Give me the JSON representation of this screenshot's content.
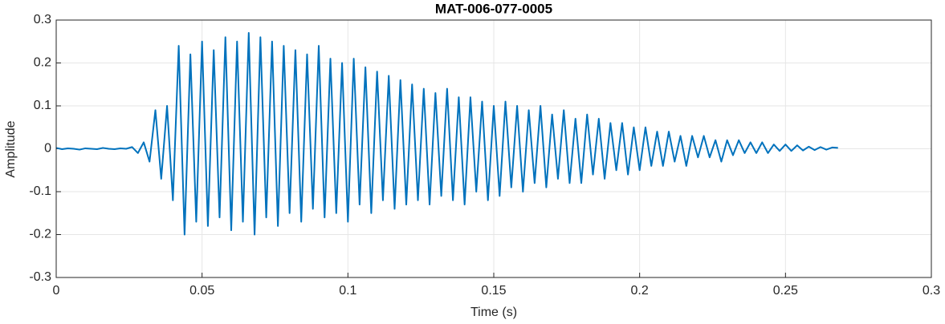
{
  "chart_data": {
    "type": "line",
    "title": "MAT-006-077-0005",
    "xlabel": "Time (s)",
    "ylabel": "Amplitude",
    "x": [
      0,
      0.002,
      0.004,
      0.006,
      0.008,
      0.01,
      0.012,
      0.014,
      0.016,
      0.018,
      0.02,
      0.022,
      0.024,
      0.026,
      0.028,
      0.03,
      0.032,
      0.034,
      0.036,
      0.038,
      0.04,
      0.042,
      0.044,
      0.046,
      0.048,
      0.05,
      0.052,
      0.054,
      0.056,
      0.058,
      0.06,
      0.062,
      0.064,
      0.066,
      0.068,
      0.07,
      0.072,
      0.074,
      0.076,
      0.078,
      0.08,
      0.082,
      0.084,
      0.086,
      0.088,
      0.09,
      0.092,
      0.094,
      0.096,
      0.098,
      0.1,
      0.102,
      0.104,
      0.106,
      0.108,
      0.11,
      0.112,
      0.114,
      0.116,
      0.118,
      0.12,
      0.122,
      0.124,
      0.126,
      0.128,
      0.13,
      0.132,
      0.134,
      0.136,
      0.138,
      0.14,
      0.142,
      0.144,
      0.146,
      0.148,
      0.15,
      0.152,
      0.154,
      0.156,
      0.158,
      0.16,
      0.162,
      0.164,
      0.166,
      0.168,
      0.17,
      0.172,
      0.174,
      0.176,
      0.178,
      0.18,
      0.182,
      0.184,
      0.186,
      0.188,
      0.19,
      0.192,
      0.194,
      0.196,
      0.198,
      0.2,
      0.202,
      0.204,
      0.206,
      0.208,
      0.21,
      0.212,
      0.214,
      0.216,
      0.218,
      0.22,
      0.222,
      0.224,
      0.226,
      0.228,
      0.23,
      0.232,
      0.234,
      0.236,
      0.238,
      0.24,
      0.242,
      0.244,
      0.246,
      0.248,
      0.25,
      0.252,
      0.254,
      0.256,
      0.258,
      0.26,
      0.262,
      0.264,
      0.266,
      0.268
    ],
    "values": [
      0.002,
      -0.001,
      0.001,
      0,
      -0.002,
      0.001,
      0,
      -0.001,
      0.002,
      0,
      -0.001,
      0.001,
      0,
      0.004,
      -0.01,
      0.015,
      -0.03,
      0.09,
      -0.07,
      0.1,
      -0.12,
      0.24,
      -0.2,
      0.22,
      -0.17,
      0.25,
      -0.18,
      0.23,
      -0.16,
      0.26,
      -0.19,
      0.25,
      -0.17,
      0.27,
      -0.2,
      0.26,
      -0.16,
      0.25,
      -0.18,
      0.24,
      -0.15,
      0.23,
      -0.17,
      0.22,
      -0.14,
      0.24,
      -0.16,
      0.21,
      -0.15,
      0.2,
      -0.17,
      0.21,
      -0.13,
      0.19,
      -0.15,
      0.18,
      -0.12,
      0.17,
      -0.14,
      0.16,
      -0.13,
      0.15,
      -0.12,
      0.14,
      -0.13,
      0.13,
      -0.11,
      0.14,
      -0.12,
      0.12,
      -0.13,
      0.12,
      -0.1,
      0.11,
      -0.12,
      0.1,
      -0.11,
      0.11,
      -0.09,
      0.1,
      -0.1,
      0.09,
      -0.08,
      0.1,
      -0.09,
      0.08,
      -0.07,
      0.09,
      -0.08,
      0.07,
      -0.08,
      0.08,
      -0.06,
      0.07,
      -0.07,
      0.06,
      -0.05,
      0.06,
      -0.06,
      0.05,
      -0.05,
      0.05,
      -0.04,
      0.04,
      -0.04,
      0.04,
      -0.03,
      0.03,
      -0.04,
      0.03,
      -0.02,
      0.03,
      -0.02,
      0.02,
      -0.03,
      0.02,
      -0.015,
      0.02,
      -0.01,
      0.015,
      -0.01,
      0.015,
      -0.01,
      0.01,
      -0.005,
      0.01,
      -0.005,
      0.008,
      -0.004,
      0.005,
      -0.003,
      0.004,
      -0.002,
      0.003,
      0.002
    ],
    "color": "#0072bd",
    "xlim": [
      0,
      0.3
    ],
    "xticks": [
      0,
      0.05,
      0.1,
      0.15,
      0.2,
      0.25,
      0.3
    ],
    "ylim": [
      -0.3,
      0.3
    ],
    "yticks": [
      -0.3,
      -0.2,
      -0.1,
      0,
      0.1,
      0.2,
      0.3
    ],
    "grid": true
  }
}
